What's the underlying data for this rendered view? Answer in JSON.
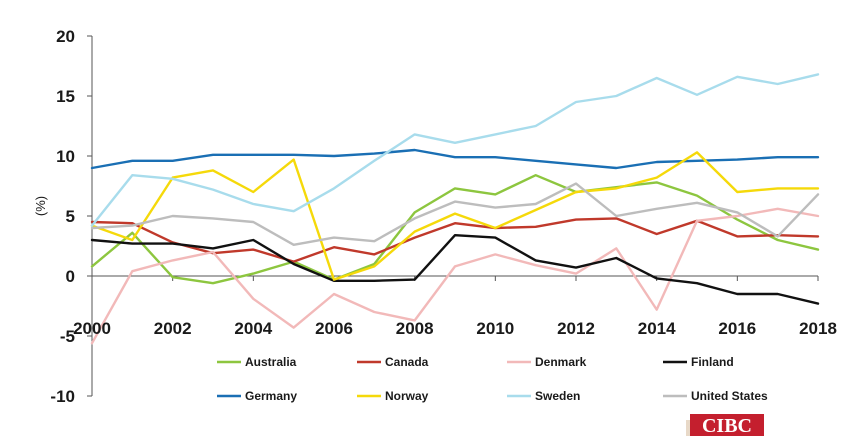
{
  "chart_data": {
    "type": "line",
    "title": "",
    "xlabel": "",
    "ylabel": "(%)",
    "xlim": [
      2000,
      2018
    ],
    "ylim": [
      -10,
      20
    ],
    "x_ticks": [
      "2000",
      "2002",
      "2004",
      "2006",
      "2008",
      "2010",
      "2012",
      "2014",
      "2016",
      "2018"
    ],
    "y_ticks": [
      "20",
      "15",
      "10",
      "5",
      "0",
      "-5",
      "-10"
    ],
    "x": [
      2000,
      2001,
      2002,
      2003,
      2004,
      2005,
      2006,
      2007,
      2008,
      2009,
      2010,
      2011,
      2012,
      2013,
      2014,
      2015,
      2016,
      2017,
      2018
    ],
    "legend_position": "bottom",
    "grid": false,
    "series": [
      {
        "name": "Australia",
        "color": "#8dc63f",
        "values": [
          0.8,
          3.6,
          -0.1,
          -0.6,
          0.2,
          1.2,
          -0.3,
          1.0,
          5.3,
          7.3,
          6.8,
          8.4,
          7.0,
          7.4,
          7.8,
          6.7,
          4.7,
          3.0,
          2.2
        ]
      },
      {
        "name": "Canada",
        "color": "#c0392b",
        "values": [
          4.5,
          4.4,
          2.8,
          1.9,
          2.2,
          1.2,
          2.4,
          1.8,
          3.2,
          4.4,
          4.0,
          4.1,
          4.7,
          4.8,
          3.5,
          4.6,
          3.3,
          3.4,
          3.3
        ]
      },
      {
        "name": "Denmark",
        "color": "#f2b9b9",
        "values": [
          -5.6,
          0.4,
          1.3,
          2.0,
          -1.9,
          -4.3,
          -1.5,
          -3.0,
          -3.7,
          0.8,
          1.8,
          0.9,
          0.2,
          2.3,
          -2.8,
          4.6,
          5.0,
          5.6,
          5.0
        ]
      },
      {
        "name": "Finland",
        "color": "#111111",
        "values": [
          3.0,
          2.7,
          2.7,
          2.3,
          3.0,
          1.0,
          -0.4,
          -0.4,
          -0.3,
          3.4,
          3.2,
          1.3,
          0.7,
          1.5,
          -0.2,
          -0.6,
          -1.5,
          -1.5,
          -2.3
        ]
      },
      {
        "name": "Germany",
        "color": "#1a6fb4",
        "values": [
          9.0,
          9.6,
          9.6,
          10.1,
          10.1,
          10.1,
          10.0,
          10.2,
          10.5,
          9.9,
          9.9,
          9.6,
          9.3,
          9.0,
          9.5,
          9.6,
          9.7,
          9.9,
          9.9
        ]
      },
      {
        "name": "Norway",
        "color": "#f5d90a",
        "values": [
          4.2,
          3.0,
          8.2,
          8.8,
          7.0,
          9.7,
          -0.3,
          0.8,
          3.7,
          5.2,
          4.0,
          5.5,
          7.0,
          7.3,
          8.2,
          10.3,
          7.0,
          7.3,
          7.3
        ]
      },
      {
        "name": "Sweden",
        "color": "#a8dcec",
        "values": [
          4.2,
          8.4,
          8.1,
          7.2,
          6.0,
          5.4,
          7.3,
          9.6,
          11.8,
          11.1,
          11.8,
          12.5,
          14.5,
          15.0,
          16.5,
          15.1,
          16.6,
          16.0,
          16.8
        ]
      },
      {
        "name": "United States",
        "color": "#bdbdbd",
        "values": [
          4.0,
          4.2,
          5.0,
          4.8,
          4.5,
          2.6,
          3.2,
          2.9,
          4.8,
          6.2,
          5.7,
          6.0,
          7.7,
          5.0,
          5.6,
          6.1,
          5.3,
          3.3,
          6.8
        ]
      }
    ]
  },
  "brand": {
    "logo_text": "CIBC",
    "color": "#c41f2e"
  }
}
